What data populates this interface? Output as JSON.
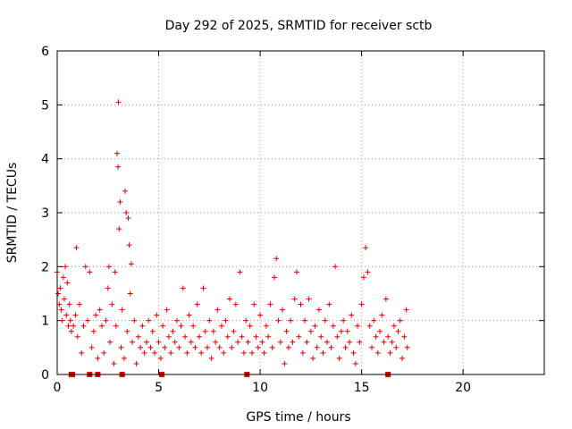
{
  "chart_data": {
    "type": "scatter",
    "title": "Day 292 of 2025, SRMTID for receiver sctb",
    "xlabel": "GPS time / hours",
    "ylabel": "SRMTID / TECUs",
    "xlim": [
      0,
      24
    ],
    "ylim": [
      0,
      6
    ],
    "x_ticks": [
      0,
      5,
      10,
      15,
      20
    ],
    "y_ticks": [
      0,
      1,
      2,
      3,
      4,
      5,
      6
    ],
    "grid": true,
    "marker": "plus",
    "color": "#e00000",
    "series": [
      {
        "name": "SRMTID",
        "points": [
          [
            0.0,
            1.9
          ],
          [
            0.05,
            1.5
          ],
          [
            0.1,
            1.3
          ],
          [
            0.15,
            1.6
          ],
          [
            0.2,
            1.2
          ],
          [
            0.25,
            1.0
          ],
          [
            0.3,
            1.8
          ],
          [
            0.35,
            1.4
          ],
          [
            0.4,
            2.0
          ],
          [
            0.45,
            1.1
          ],
          [
            0.5,
            1.7
          ],
          [
            0.55,
            0.9
          ],
          [
            0.6,
            1.3
          ],
          [
            0.65,
            1.0
          ],
          [
            0.7,
            0.8
          ],
          [
            0.8,
            0.9
          ],
          [
            0.9,
            1.1
          ],
          [
            0.95,
            2.35
          ],
          [
            1.0,
            0.7
          ],
          [
            1.1,
            1.3
          ],
          [
            1.2,
            0.4
          ],
          [
            1.3,
            0.9
          ],
          [
            1.4,
            2.0
          ],
          [
            1.5,
            1.0
          ],
          [
            1.6,
            1.9
          ],
          [
            1.7,
            0.5
          ],
          [
            1.8,
            0.8
          ],
          [
            1.9,
            1.1
          ],
          [
            2.0,
            0.3
          ],
          [
            2.1,
            1.2
          ],
          [
            2.2,
            0.9
          ],
          [
            2.3,
            0.4
          ],
          [
            2.4,
            1.0
          ],
          [
            2.5,
            1.6
          ],
          [
            2.55,
            2.0
          ],
          [
            2.6,
            0.6
          ],
          [
            2.7,
            1.3
          ],
          [
            2.8,
            0.2
          ],
          [
            2.85,
            1.9
          ],
          [
            2.9,
            0.9
          ],
          [
            2.95,
            4.1
          ],
          [
            3.0,
            3.85
          ],
          [
            3.02,
            5.05
          ],
          [
            3.05,
            2.7
          ],
          [
            3.1,
            3.2
          ],
          [
            3.15,
            0.5
          ],
          [
            3.2,
            1.2
          ],
          [
            3.3,
            0.3
          ],
          [
            3.35,
            3.4
          ],
          [
            3.4,
            3.0
          ],
          [
            3.45,
            0.8
          ],
          [
            3.5,
            2.9
          ],
          [
            3.55,
            2.4
          ],
          [
            3.6,
            1.5
          ],
          [
            3.65,
            2.05
          ],
          [
            3.7,
            0.6
          ],
          [
            3.8,
            1.0
          ],
          [
            3.9,
            0.2
          ],
          [
            4.0,
            0.7
          ],
          [
            4.1,
            0.5
          ],
          [
            4.2,
            0.9
          ],
          [
            4.3,
            0.4
          ],
          [
            4.4,
            0.6
          ],
          [
            4.5,
            1.0
          ],
          [
            4.6,
            0.5
          ],
          [
            4.7,
            0.8
          ],
          [
            4.8,
            0.4
          ],
          [
            4.9,
            1.1
          ],
          [
            5.0,
            0.6
          ],
          [
            5.1,
            0.3
          ],
          [
            5.2,
            0.9
          ],
          [
            5.3,
            0.5
          ],
          [
            5.4,
            1.2
          ],
          [
            5.5,
            0.7
          ],
          [
            5.6,
            0.4
          ],
          [
            5.7,
            0.8
          ],
          [
            5.8,
            0.6
          ],
          [
            5.9,
            1.0
          ],
          [
            6.0,
            0.5
          ],
          [
            6.1,
            0.9
          ],
          [
            6.2,
            1.6
          ],
          [
            6.3,
            0.7
          ],
          [
            6.4,
            0.4
          ],
          [
            6.5,
            1.1
          ],
          [
            6.6,
            0.6
          ],
          [
            6.7,
            0.9
          ],
          [
            6.8,
            0.5
          ],
          [
            6.9,
            1.3
          ],
          [
            7.0,
            0.7
          ],
          [
            7.1,
            0.4
          ],
          [
            7.2,
            1.6
          ],
          [
            7.3,
            0.8
          ],
          [
            7.4,
            0.5
          ],
          [
            7.5,
            1.0
          ],
          [
            7.6,
            0.3
          ],
          [
            7.7,
            0.8
          ],
          [
            7.8,
            0.6
          ],
          [
            7.9,
            1.2
          ],
          [
            8.0,
            0.5
          ],
          [
            8.1,
            0.9
          ],
          [
            8.2,
            0.4
          ],
          [
            8.3,
            1.0
          ],
          [
            8.4,
            0.7
          ],
          [
            8.5,
            1.4
          ],
          [
            8.6,
            0.5
          ],
          [
            8.7,
            0.8
          ],
          [
            8.8,
            1.3
          ],
          [
            8.9,
            0.6
          ],
          [
            9.0,
            1.9
          ],
          [
            9.1,
            0.7
          ],
          [
            9.2,
            0.4
          ],
          [
            9.3,
            1.0
          ],
          [
            9.4,
            0.6
          ],
          [
            9.5,
            0.9
          ],
          [
            9.6,
            0.4
          ],
          [
            9.7,
            1.3
          ],
          [
            9.8,
            0.7
          ],
          [
            9.9,
            0.5
          ],
          [
            10.0,
            1.1
          ],
          [
            10.1,
            0.6
          ],
          [
            10.2,
            0.4
          ],
          [
            10.3,
            0.9
          ],
          [
            10.4,
            0.7
          ],
          [
            10.5,
            1.3
          ],
          [
            10.6,
            0.5
          ],
          [
            10.7,
            1.8
          ],
          [
            10.8,
            2.15
          ],
          [
            10.9,
            1.0
          ],
          [
            11.0,
            0.6
          ],
          [
            11.1,
            1.2
          ],
          [
            11.2,
            0.2
          ],
          [
            11.3,
            0.8
          ],
          [
            11.4,
            0.5
          ],
          [
            11.5,
            1.0
          ],
          [
            11.6,
            0.6
          ],
          [
            11.7,
            1.4
          ],
          [
            11.8,
            1.9
          ],
          [
            11.9,
            0.7
          ],
          [
            12.0,
            1.3
          ],
          [
            12.1,
            0.4
          ],
          [
            12.2,
            1.0
          ],
          [
            12.3,
            0.6
          ],
          [
            12.4,
            1.4
          ],
          [
            12.5,
            0.8
          ],
          [
            12.6,
            0.3
          ],
          [
            12.7,
            0.9
          ],
          [
            12.8,
            0.5
          ],
          [
            12.9,
            1.2
          ],
          [
            13.0,
            0.7
          ],
          [
            13.1,
            0.4
          ],
          [
            13.2,
            1.0
          ],
          [
            13.3,
            0.6
          ],
          [
            13.4,
            1.3
          ],
          [
            13.5,
            0.5
          ],
          [
            13.6,
            0.9
          ],
          [
            13.7,
            2.0
          ],
          [
            13.8,
            0.7
          ],
          [
            13.9,
            0.3
          ],
          [
            14.0,
            0.8
          ],
          [
            14.1,
            1.0
          ],
          [
            14.2,
            0.5
          ],
          [
            14.3,
            0.8
          ],
          [
            14.4,
            0.6
          ],
          [
            14.5,
            1.1
          ],
          [
            14.6,
            0.4
          ],
          [
            14.7,
            0.2
          ],
          [
            14.8,
            0.9
          ],
          [
            14.9,
            0.6
          ],
          [
            15.0,
            1.3
          ],
          [
            15.1,
            1.8
          ],
          [
            15.2,
            2.35
          ],
          [
            15.3,
            1.9
          ],
          [
            15.4,
            0.9
          ],
          [
            15.5,
            0.5
          ],
          [
            15.6,
            1.0
          ],
          [
            15.7,
            0.7
          ],
          [
            15.8,
            0.4
          ],
          [
            15.9,
            0.8
          ],
          [
            16.0,
            1.1
          ],
          [
            16.1,
            0.6
          ],
          [
            16.2,
            1.4
          ],
          [
            16.3,
            0.7
          ],
          [
            16.4,
            0.4
          ],
          [
            16.5,
            0.6
          ],
          [
            16.6,
            0.9
          ],
          [
            16.7,
            0.5
          ],
          [
            16.8,
            0.8
          ],
          [
            16.9,
            1.0
          ],
          [
            17.0,
            0.3
          ],
          [
            17.1,
            0.7
          ],
          [
            17.2,
            1.2
          ],
          [
            17.25,
            0.5
          ]
        ]
      }
    ],
    "gap_markers_x": [
      0.7,
      0.75,
      1.6,
      2.0,
      3.2,
      5.15,
      9.35,
      16.3
    ]
  }
}
